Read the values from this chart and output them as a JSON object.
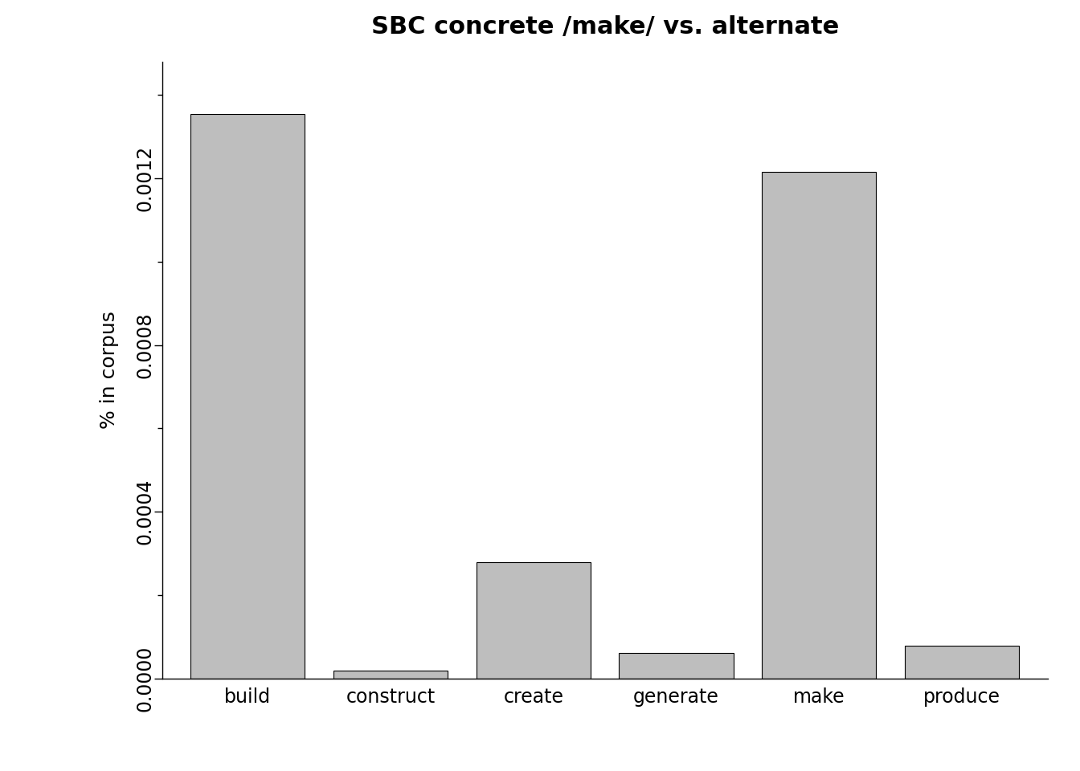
{
  "categories": [
    "build",
    "construct",
    "create",
    "generate",
    "make",
    "produce"
  ],
  "values": [
    0.001355,
    1.8e-05,
    0.00028,
    6.2e-05,
    0.001215,
    7.8e-05
  ],
  "bar_color": "#BEBEBE",
  "bar_edgecolor": "#000000",
  "title": "SBC concrete /make/ vs. alternate",
  "ylabel": "% in corpus",
  "title_fontsize": 22,
  "label_fontsize": 18,
  "tick_fontsize": 17,
  "ytick_label_fontsize": 17,
  "ylim": [
    0,
    0.00148
  ],
  "yticks": [
    0.0,
    0.0004,
    0.0008,
    0.0012
  ],
  "background_color": "#ffffff"
}
